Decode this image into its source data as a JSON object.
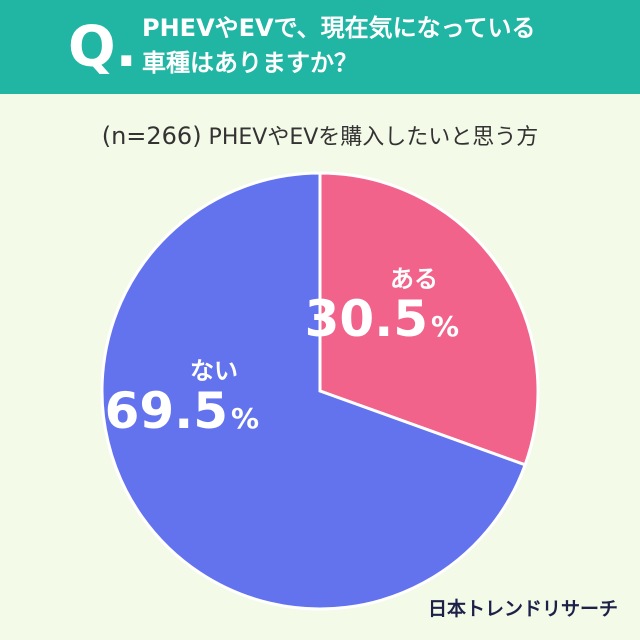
{
  "question": {
    "mark": "Q.",
    "line1": "PHEVやEVで、現在気になっている",
    "line2": "車種はありますか？"
  },
  "subtitle": {
    "n": "(n=266)",
    "text": " PHEVやEVを購入したいと思う方"
  },
  "brand": "日本トレンドリサーチ",
  "colors": {
    "header": "#21b5a4",
    "background": "#f4fae8",
    "aru": "#f2638c",
    "nai": "#6373ee",
    "label": "#ffffff"
  },
  "chart_data": {
    "type": "pie",
    "title": "PHEVやEVで、現在気になっている車種はありますか？",
    "subtitle": "(n=266) PHEVやEVを購入したいと思う方",
    "start_angle": "12 o'clock",
    "direction": "clockwise",
    "slices": [
      {
        "label": "ある",
        "value": 30.5,
        "value_text": "30.5",
        "unit": "%",
        "color": "#f2638c"
      },
      {
        "label": "ない",
        "value": 69.5,
        "value_text": "69.5",
        "unit": "%",
        "color": "#6373ee"
      }
    ]
  }
}
